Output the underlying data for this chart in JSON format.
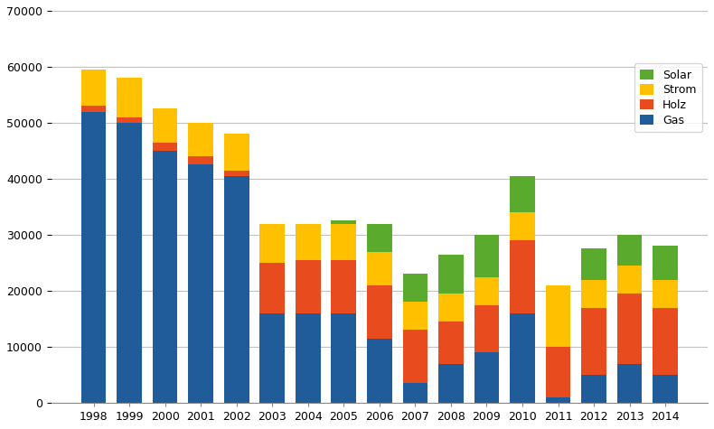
{
  "years": [
    1998,
    1999,
    2000,
    2001,
    2002,
    2003,
    2004,
    2005,
    2006,
    2007,
    2008,
    2009,
    2010,
    2011,
    2012,
    2013,
    2014
  ],
  "Gas": [
    52000,
    50000,
    45000,
    42500,
    40500,
    16000,
    16000,
    16000,
    11500,
    3500,
    7000,
    9000,
    16000,
    1000,
    5000,
    7000,
    5000
  ],
  "Holz": [
    1000,
    1000,
    1500,
    1500,
    1000,
    9000,
    9500,
    9500,
    9500,
    9500,
    7500,
    8500,
    13000,
    9000,
    12000,
    12500,
    12000
  ],
  "Strom": [
    6500,
    7000,
    6000,
    6000,
    6500,
    7000,
    6500,
    6500,
    6000,
    5000,
    5000,
    5000,
    5000,
    11000,
    5000,
    5000,
    5000
  ],
  "Solar": [
    0,
    0,
    0,
    0,
    0,
    0,
    0,
    500,
    5000,
    5000,
    7000,
    7500,
    6500,
    0,
    5500,
    5500,
    6000
  ],
  "colors": {
    "Gas": "#1f5c99",
    "Holz": "#e84c1e",
    "Strom": "#ffc000",
    "Solar": "#5aaa2e"
  },
  "ylim": [
    0,
    70000
  ],
  "yticks": [
    0,
    10000,
    20000,
    30000,
    40000,
    50000,
    60000,
    70000
  ],
  "bar_width": 0.7,
  "background_color": "#ffffff",
  "grid_color": "#c0c0c0"
}
